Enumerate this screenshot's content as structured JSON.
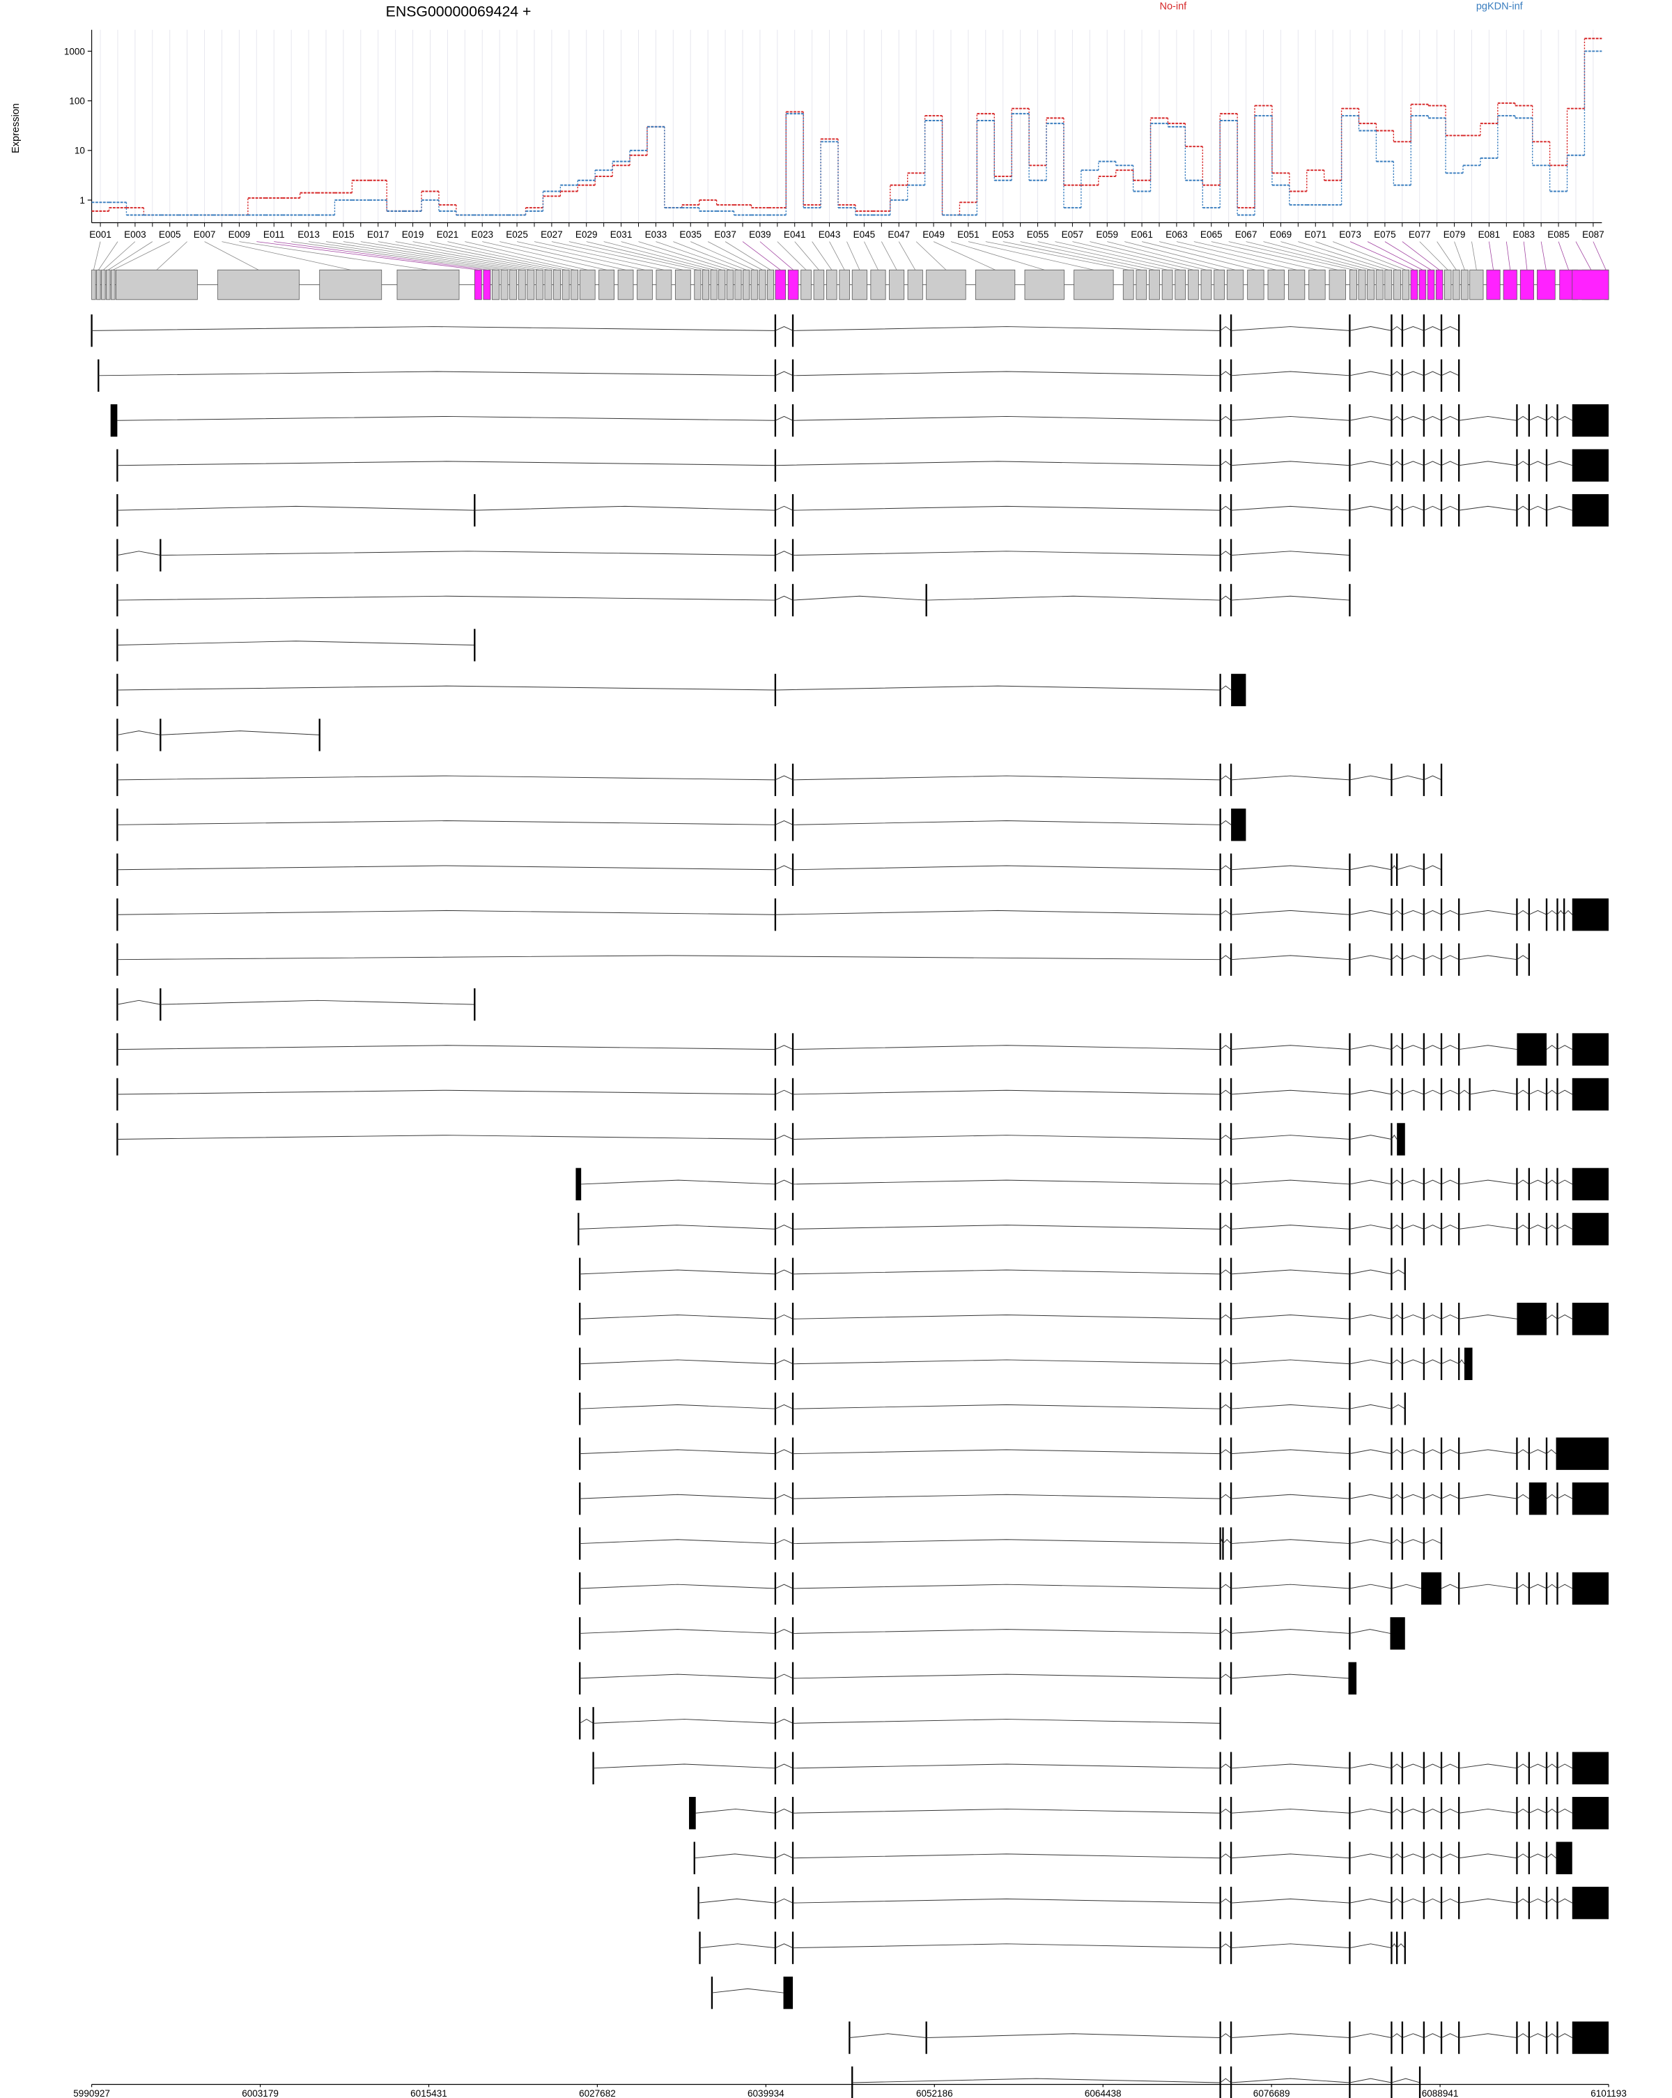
{
  "chart_data": {
    "type": "line",
    "title": "ENSG00000069424 +",
    "ylabel": "Expression",
    "log_scale": true,
    "categories": [
      "E001",
      null,
      "E003",
      null,
      "E005",
      null,
      "E007",
      null,
      "E009",
      null,
      "E011",
      null,
      "E013",
      null,
      "E015",
      null,
      "E017",
      null,
      "E019",
      null,
      "E021",
      null,
      "E023",
      null,
      "E025",
      null,
      "E027",
      null,
      "E029",
      null,
      "E031",
      null,
      "E033",
      null,
      "E035",
      null,
      "E037",
      null,
      "E039",
      null,
      "E041",
      null,
      "E043",
      null,
      "E045",
      null,
      "E047",
      null,
      "E049",
      null,
      "E051",
      null,
      "E053",
      null,
      "E055",
      null,
      "E057",
      null,
      "E059",
      null,
      "E061",
      null,
      "E063",
      null,
      "E065",
      null,
      "E067",
      null,
      "E069",
      null,
      "E071",
      null,
      "E073",
      null,
      "E075",
      null,
      "E077",
      null,
      "E079",
      null,
      "E081",
      null,
      "E083",
      null,
      "E085",
      null,
      "E087"
    ],
    "series": [
      {
        "name": "No-inf",
        "color": "#d62728",
        "values": [
          0.6,
          0.7,
          0.7,
          0.5,
          0.5,
          0.5,
          0.5,
          0.5,
          0.5,
          1.1,
          1.1,
          1.1,
          1.4,
          1.4,
          1.4,
          2.5,
          2.5,
          0.6,
          0.6,
          1.5,
          0.8,
          0.5,
          0.5,
          0.5,
          0.5,
          0.7,
          1.2,
          1.5,
          2,
          3,
          5,
          8,
          30,
          0.7,
          0.8,
          1,
          0.8,
          0.8,
          0.7,
          0.7,
          60,
          0.8,
          17,
          0.8,
          0.6,
          0.6,
          2,
          3.5,
          50,
          0.5,
          0.9,
          55,
          3,
          70,
          5,
          45,
          2,
          2,
          3,
          4,
          2.5,
          45,
          35,
          12,
          2,
          55,
          0.7,
          80,
          3.5,
          1.5,
          4,
          2.5,
          70,
          35,
          25,
          15,
          85,
          80,
          20,
          20,
          35,
          90,
          80,
          15,
          5,
          70,
          1800
        ]
      },
      {
        "name": "pgKDN-inf",
        "color": "#3a7ebf",
        "values": [
          0.9,
          0.9,
          0.5,
          0.5,
          0.5,
          0.5,
          0.5,
          0.5,
          0.5,
          0.5,
          0.5,
          0.5,
          0.5,
          0.5,
          1,
          1,
          1,
          0.6,
          0.6,
          1,
          0.6,
          0.5,
          0.5,
          0.5,
          0.5,
          0.6,
          1.5,
          2,
          2.5,
          4,
          6,
          10,
          30,
          0.7,
          0.7,
          0.6,
          0.6,
          0.5,
          0.5,
          0.5,
          55,
          0.7,
          15,
          0.7,
          0.5,
          0.5,
          1,
          2,
          40,
          0.5,
          0.5,
          40,
          2.5,
          55,
          2.5,
          35,
          0.7,
          4,
          6,
          5,
          1.5,
          35,
          30,
          2.5,
          0.7,
          40,
          0.5,
          50,
          2,
          0.8,
          0.8,
          0.8,
          50,
          25,
          6,
          2,
          50,
          45,
          3.5,
          5,
          7,
          50,
          45,
          5,
          1.5,
          8,
          1000
        ]
      }
    ],
    "ylim": [
      0.35,
      2700
    ],
    "yticks": [
      1,
      10,
      100,
      1000
    ],
    "genome_axis": {
      "xlim": [
        5990927,
        6101193
      ],
      "xticks": [
        5990927,
        6003179,
        6015431,
        6027682,
        6039934,
        6052186,
        6064438,
        6076689,
        6088941,
        6101193
      ]
    }
  }
}
